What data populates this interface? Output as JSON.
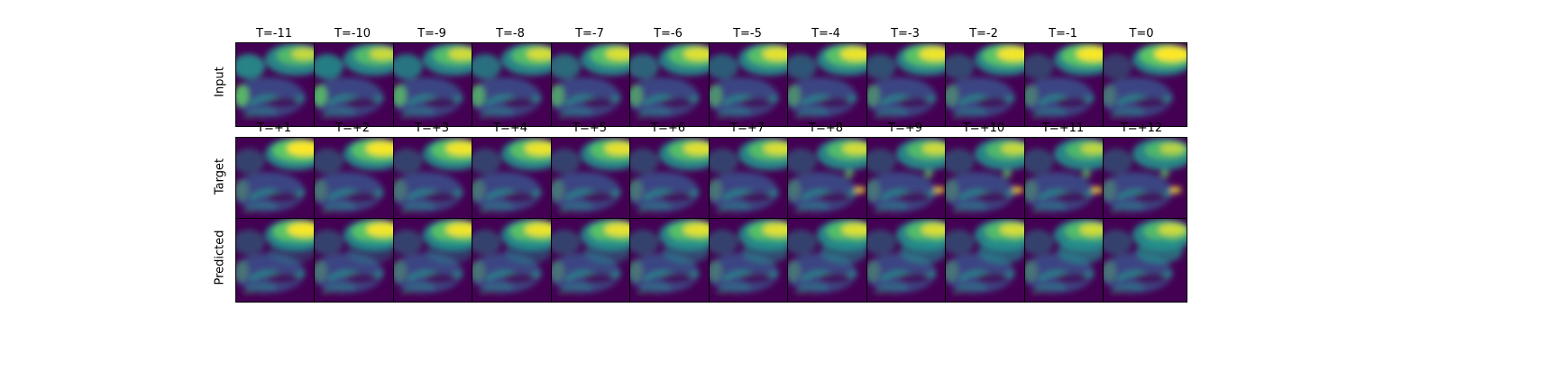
{
  "colormap": [
    "#440154",
    "#3b528b",
    "#21918c",
    "#5ec962",
    "#fde725"
  ],
  "rows": [
    {
      "label": "Input",
      "titles": [
        "T=-11",
        "T=-10",
        "T=-9",
        "T=-8",
        "T=-7",
        "T=-6",
        "T=-5",
        "T=-4",
        "T=-3",
        "T=-2",
        "T=-1",
        "T=0"
      ]
    },
    {
      "label": "Target",
      "titles": [
        "T=+1",
        "T=+2",
        "T=+3",
        "T=+4",
        "T=+5",
        "T=+6",
        "T=+7",
        "T=+8",
        "T=+9",
        "T=+10",
        "T=+11",
        "T=+12"
      ]
    },
    {
      "label": "Predicted",
      "titles": []
    }
  ]
}
